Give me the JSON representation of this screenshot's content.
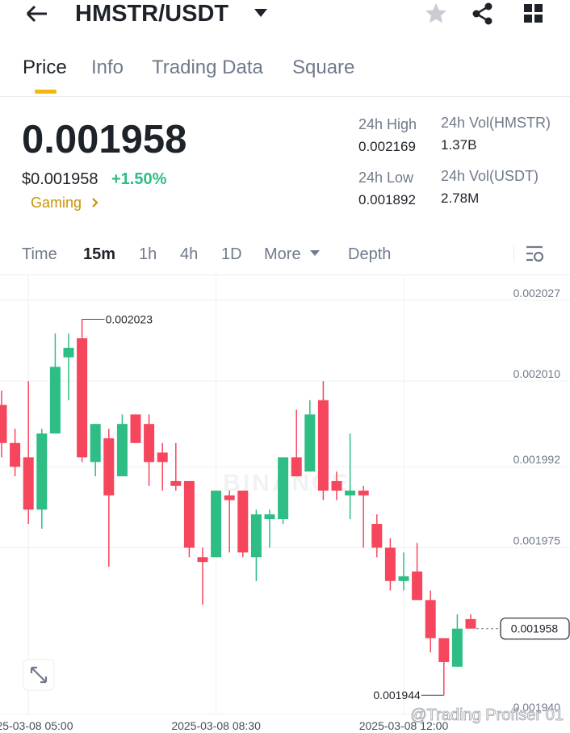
{
  "header": {
    "pair": "HMSTR/USDT"
  },
  "tabs": [
    "Price",
    "Info",
    "Trading Data",
    "Square"
  ],
  "price": {
    "last": "0.001958",
    "usd": "$0.001958",
    "change": "+1.50%",
    "tag": "Gaming"
  },
  "stats": [
    {
      "label": "24h High",
      "value": "0.002169"
    },
    {
      "label": "24h Vol(HMSTR)",
      "value": "1.37B"
    },
    {
      "label": "24h Low",
      "value": "0.001892"
    },
    {
      "label": "24h Vol(USDT)",
      "value": "2.78M"
    }
  ],
  "intervals": [
    "Time",
    "15m",
    "1h",
    "4h",
    "1D",
    "More",
    "Depth"
  ],
  "chart_data": {
    "type": "candlestick",
    "categories": [
      null,
      null,
      "2025-03-08 05:00",
      null,
      null,
      null,
      null,
      null,
      null,
      null,
      null,
      null,
      null,
      null,
      null,
      null,
      "2025-03-08 08:30",
      null,
      null,
      null,
      null,
      null,
      null,
      null,
      null,
      null,
      null,
      null,
      null,
      null,
      "2025-03-08 12:00",
      null,
      null,
      null,
      null,
      null
    ],
    "open": [
      0.002005,
      0.001997,
      0.001994,
      0.001983,
      0.001999,
      0.002015,
      0.002019,
      0.001993,
      0.001998,
      0.00199,
      0.002003,
      0.002001,
      0.001995,
      0.001989,
      0.001989,
      0.001973,
      0.001973,
      0.001986,
      0.001987,
      0.001973,
      0.001981,
      0.001981,
      0.001994,
      0.001991,
      0.002006,
      0.001989,
      0.001986,
      0.001987,
      0.00198,
      0.001975,
      0.001968,
      0.00197,
      0.001964,
      0.001956,
      0.00195,
      0.00196
    ],
    "high": [
      0.002008,
      0.002,
      0.00201,
      0.002,
      0.00202,
      0.00202,
      0.002023,
      0.002001,
      0.002,
      0.002003,
      0.002003,
      0.002003,
      0.001997,
      0.001997,
      0.001989,
      0.001975,
      0.001987,
      0.001987,
      0.001987,
      0.001983,
      0.001983,
      0.001994,
      0.002004,
      0.002006,
      0.00201,
      0.001991,
      0.001999,
      0.001988,
      0.001982,
      0.001977,
      0.001974,
      0.001976,
      0.001966,
      0.001956,
      0.001961,
      0.001961
    ],
    "low": [
      0.001994,
      0.00199,
      0.00198,
      0.001979,
      0.001999,
      0.002006,
      0.001993,
      0.00199,
      0.001971,
      0.00199,
      0.001997,
      0.001988,
      0.001987,
      0.001987,
      0.001973,
      0.001963,
      0.001973,
      0.001974,
      0.001973,
      0.001968,
      0.001975,
      0.00198,
      0.00199,
      0.001991,
      0.001985,
      0.001985,
      0.001981,
      0.001975,
      0.001973,
      0.001966,
      0.001966,
      0.001964,
      0.001953,
      0.001944,
      0.00195,
      0.001958
    ],
    "close": [
      0.001997,
      0.001992,
      0.001983,
      0.001999,
      0.002013,
      0.002017,
      0.001994,
      0.002001,
      0.001986,
      0.002001,
      0.001997,
      0.001993,
      0.001993,
      0.001988,
      0.001975,
      0.001972,
      0.001987,
      0.001985,
      0.001974,
      0.001982,
      0.001982,
      0.001994,
      0.00199,
      0.002003,
      0.001987,
      0.001987,
      0.001987,
      0.001986,
      0.001975,
      0.001968,
      0.001969,
      0.001964,
      0.001956,
      0.001951,
      0.001958,
      0.001958
    ],
    "up_color": "#2ebd85",
    "down_color": "#f6465d",
    "ylim": [
      0.0019398,
      0.0020319
    ],
    "yticks": [
      0.002027,
      {
        "value": 0.00201,
        "label": "0.002010"
      },
      0.001992,
      0.001975,
      {
        "value": 0.00194,
        "label": "0.001940"
      }
    ],
    "grid": true,
    "watermarks": [
      "BINANCE",
      "@Trading Profiser 01"
    ]
  }
}
